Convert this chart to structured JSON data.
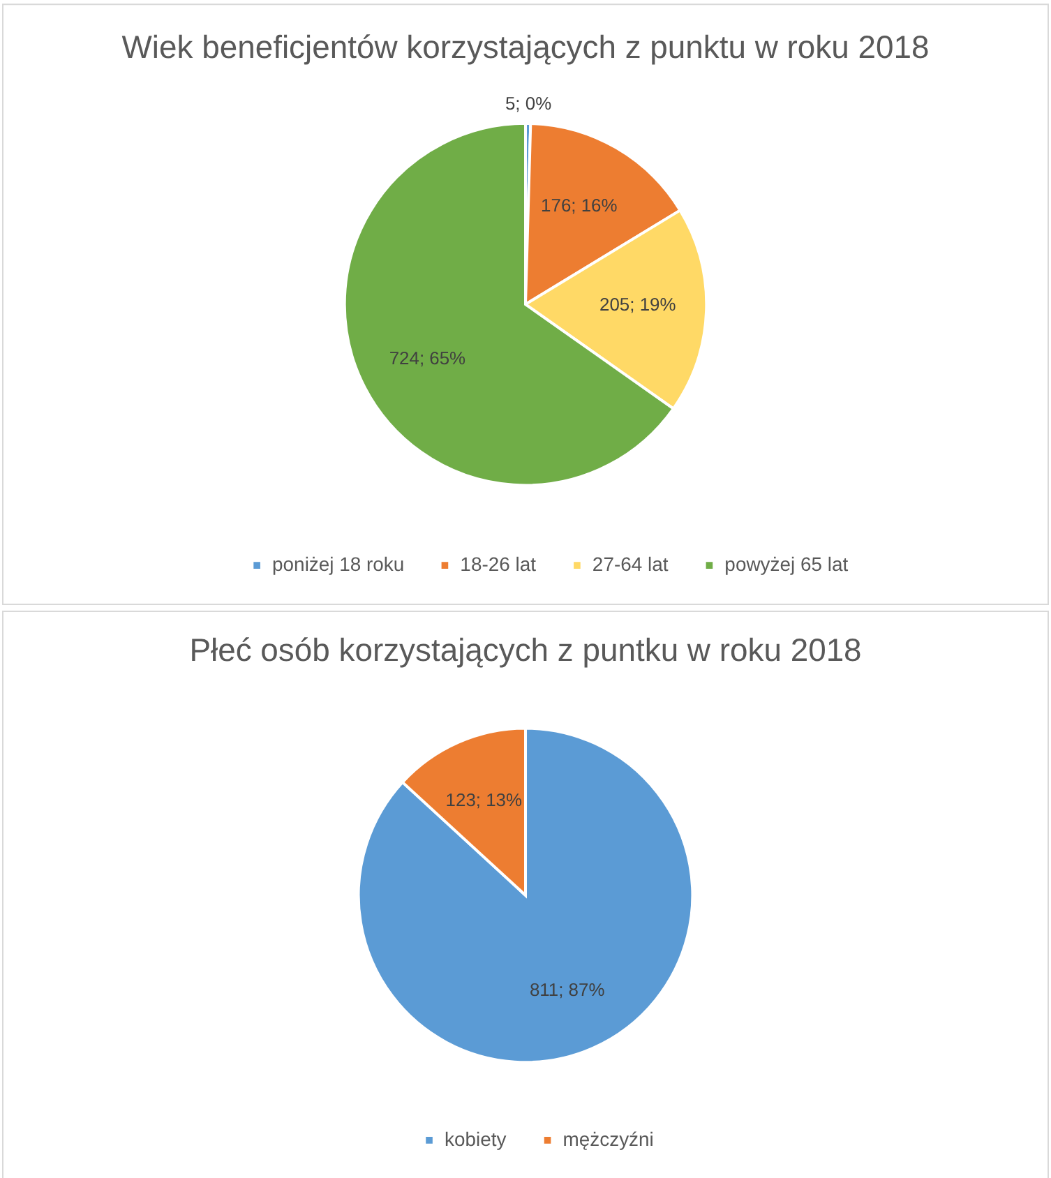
{
  "chart_data": [
    {
      "type": "pie",
      "title": "Wiek beneficjentów korzystających z punktu w  roku 2018",
      "categories": [
        "poniżej 18 roku",
        "18-26 lat",
        "27-64 lat",
        "powyżej 65 lat"
      ],
      "values": [
        5,
        176,
        205,
        724
      ],
      "colors": [
        "#5b9bd5",
        "#ed7d31",
        "#ffd966",
        "#70ad47"
      ],
      "value_labels": [
        "5; 0%",
        "176; 16%",
        "205; 19%",
        "724; 65%"
      ],
      "legend": "bottom"
    },
    {
      "type": "pie",
      "title": "Płeć osób korzystających z puntku w roku 2018",
      "categories": [
        "kobiety",
        "mężczyźni"
      ],
      "values": [
        811,
        123
      ],
      "colors": [
        "#5b9bd5",
        "#ed7d31"
      ],
      "value_labels": [
        "811; 87%",
        "123; 13%"
      ],
      "legend": "bottom"
    }
  ]
}
